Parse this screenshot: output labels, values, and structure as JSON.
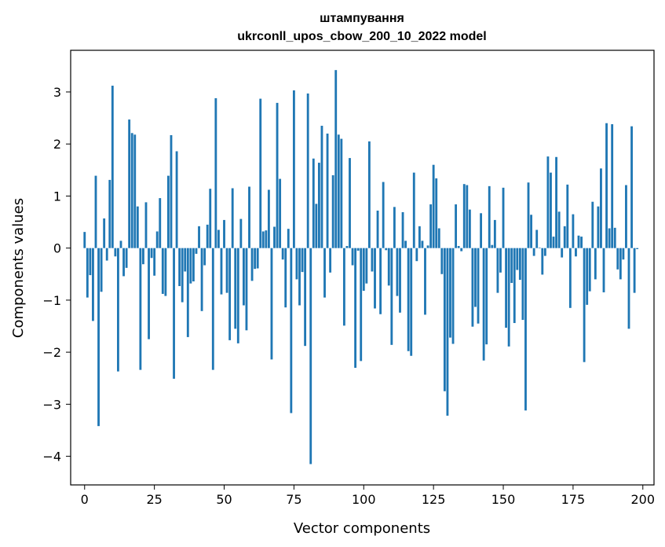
{
  "chart_data": {
    "type": "bar",
    "title_line1": "штампування",
    "title_line2": "ukrconll_upos_cbow_200_10_2022 model",
    "xlabel": "Vector components",
    "ylabel": "Components values",
    "xlim": [
      -5,
      204
    ],
    "ylim": [
      -4.55,
      3.8
    ],
    "xticks": [
      0,
      25,
      50,
      75,
      100,
      125,
      150,
      175,
      200
    ],
    "yticks": [
      -4,
      -3,
      -2,
      -1,
      0,
      1,
      2,
      3
    ],
    "ytick_labels": [
      "−4",
      "−3",
      "−2",
      "−1",
      "0",
      "1",
      "2",
      "3"
    ],
    "bar_color": "#1f77b4",
    "values": [
      0.31,
      -0.95,
      -0.52,
      -1.4,
      1.39,
      -3.42,
      -0.84,
      0.57,
      -0.24,
      1.31,
      3.12,
      -0.16,
      -2.37,
      0.14,
      -0.54,
      -0.38,
      2.47,
      2.21,
      2.18,
      0.8,
      -2.34,
      -0.31,
      0.88,
      -1.75,
      -0.19,
      -0.53,
      0.32,
      0.96,
      -0.88,
      -0.92,
      1.39,
      2.17,
      -2.51,
      1.86,
      -0.73,
      -1.04,
      -0.45,
      -1.71,
      -0.68,
      -0.64,
      -0.11,
      0.42,
      -1.21,
      -0.33,
      0.45,
      1.14,
      -2.34,
      2.88,
      0.35,
      -0.89,
      0.54,
      -0.86,
      -1.77,
      1.15,
      -1.55,
      -1.83,
      0.56,
      -1.1,
      -1.58,
      1.18,
      -0.63,
      -0.4,
      -0.39,
      2.87,
      0.32,
      0.34,
      1.12,
      -2.14,
      0.41,
      2.79,
      1.33,
      -0.22,
      -1.14,
      0.37,
      -3.17,
      3.03,
      -0.6,
      -1.1,
      -0.46,
      -1.88,
      2.97,
      -4.15,
      1.72,
      0.85,
      1.64,
      2.35,
      -0.95,
      2.2,
      -0.47,
      1.4,
      3.42,
      2.18,
      2.1,
      -1.49,
      0.04,
      1.73,
      -0.33,
      -2.3,
      -0.05,
      -2.17,
      -0.82,
      -0.68,
      2.05,
      -0.45,
      -1.16,
      0.72,
      -1.27,
      1.27,
      -0.04,
      -0.72,
      -1.86,
      0.79,
      -0.92,
      -1.24,
      0.69,
      0.14,
      -1.98,
      -2.07,
      1.45,
      -0.25,
      0.42,
      0.14,
      -1.28,
      0.05,
      0.84,
      1.6,
      1.34,
      0.38,
      -0.5,
      -2.75,
      -3.22,
      -1.72,
      -1.84,
      0.84,
      0.04,
      -0.06,
      1.23,
      1.21,
      0.74,
      -1.51,
      -1.13,
      -1.45,
      0.67,
      -2.16,
      -1.85,
      1.19,
      0.06,
      0.54,
      -0.86,
      -0.47,
      1.16,
      -1.53,
      -1.89,
      -0.67,
      -1.44,
      -0.42,
      -0.61,
      -1.38,
      -3.12,
      1.26,
      0.64,
      -0.15,
      0.35,
      0.01,
      -0.51,
      -0.15,
      1.76,
      1.45,
      0.22,
      1.75,
      0.7,
      -0.18,
      0.42,
      1.22,
      -1.15,
      0.65,
      -0.16,
      0.24,
      0.22,
      -2.19,
      -1.09,
      -0.83,
      0.89,
      -0.6,
      0.8,
      1.53,
      -0.85,
      2.4,
      0.38,
      2.38,
      0.39,
      -0.41,
      -0.6,
      -0.22,
      1.21,
      -1.55,
      2.34,
      -0.86,
      -0.02
    ]
  }
}
